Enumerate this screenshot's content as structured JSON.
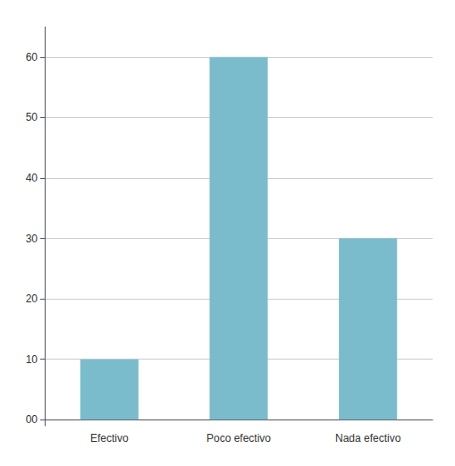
{
  "chart_data": {
    "type": "bar",
    "categories": [
      "Efectivo",
      "Poco efectivo",
      "Nada efectivo"
    ],
    "values": [
      10,
      60,
      30
    ],
    "color": "#7BBCCC",
    "ylim": [
      -1,
      65
    ],
    "yticks": [
      {
        "value": 0,
        "label": "00"
      },
      10,
      20,
      30,
      40,
      50,
      60
    ],
    "grid": true
  }
}
